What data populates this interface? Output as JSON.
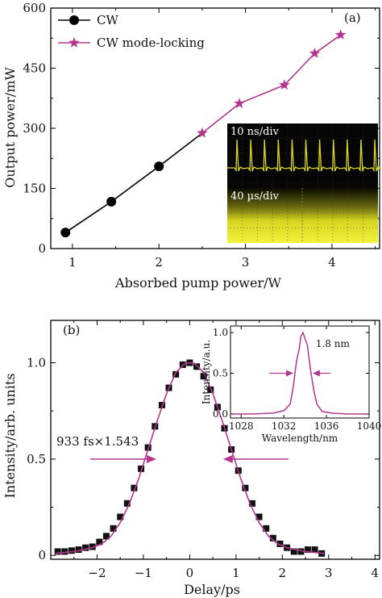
{
  "chart_data": [
    {
      "type": "line",
      "panel_label": "(a)",
      "xlabel": "Absorbed pump power/W",
      "ylabel": "Output power/mW",
      "xlim": [
        0.75,
        4.55
      ],
      "ylim": [
        0,
        600
      ],
      "xticks": [
        1,
        2,
        3,
        4
      ],
      "yticks": [
        0,
        150,
        300,
        450,
        600
      ],
      "series": [
        {
          "name": "CW",
          "marker": "circle",
          "color": "#000000",
          "x": [
            0.92,
            1.45,
            2.0,
            2.5
          ],
          "y": [
            40,
            117,
            205,
            288
          ]
        },
        {
          "name": "CW mode-locking",
          "marker": "star",
          "color": "#b2388f",
          "x": [
            2.5,
            2.93,
            3.45,
            3.8,
            4.1
          ],
          "y": [
            288,
            362,
            408,
            487,
            533
          ]
        }
      ],
      "inset": {
        "type": "oscilloscope",
        "trace_color": "#d8d820",
        "label_top": "10 ns/div",
        "label_bottom": "40 µs/div"
      }
    },
    {
      "type": "scatter",
      "panel_label": "(b)",
      "xlabel": "Delay/ps",
      "ylabel": "Intensity/arb. units",
      "xlim": [
        -3.0,
        4.1
      ],
      "ylim": [
        -0.02,
        1.22
      ],
      "xticks": [
        -2,
        -1,
        0,
        1,
        2,
        3,
        4
      ],
      "yticks": [
        0,
        0.5,
        1.0
      ],
      "ytick_labels": [
        "0",
        "0.5",
        "1.0"
      ],
      "annotation": "933 fs×1.543",
      "fwhm_ps": 1.44,
      "series": [
        {
          "name": "",
          "marker": "square",
          "color": "#111111",
          "x": [
            -2.85,
            -2.7,
            -2.55,
            -2.4,
            -2.25,
            -2.1,
            -1.95,
            -1.8,
            -1.65,
            -1.5,
            -1.35,
            -1.2,
            -1.05,
            -0.9,
            -0.75,
            -0.6,
            -0.45,
            -0.3,
            -0.15,
            0.0,
            0.15,
            0.3,
            0.45,
            0.6,
            0.75,
            0.9,
            1.05,
            1.2,
            1.35,
            1.5,
            1.65,
            1.8,
            1.95,
            2.1,
            2.25,
            2.4,
            2.55,
            2.7,
            2.85
          ],
          "y": [
            0.02,
            0.02,
            0.025,
            0.03,
            0.04,
            0.045,
            0.07,
            0.1,
            0.14,
            0.2,
            0.27,
            0.35,
            0.45,
            0.56,
            0.67,
            0.78,
            0.87,
            0.94,
            0.99,
            1.0,
            0.98,
            0.93,
            0.86,
            0.77,
            0.66,
            0.55,
            0.44,
            0.35,
            0.27,
            0.2,
            0.14,
            0.09,
            0.06,
            0.04,
            0.02,
            0.02,
            0.03,
            0.03,
            0.01
          ]
        },
        {
          "name": "",
          "marker": "none",
          "color": "#b2388f",
          "x": [
            -2.9,
            -2.7,
            -2.5,
            -2.3,
            -2.1,
            -1.9,
            -1.7,
            -1.5,
            -1.3,
            -1.1,
            -0.9,
            -0.7,
            -0.5,
            -0.3,
            -0.1,
            0.0,
            0.1,
            0.3,
            0.5,
            0.7,
            0.9,
            1.1,
            1.3,
            1.5,
            1.7,
            1.9,
            2.1,
            2.3,
            2.5,
            2.7,
            2.9
          ],
          "y": [
            0.01,
            0.015,
            0.02,
            0.03,
            0.04,
            0.06,
            0.1,
            0.17,
            0.27,
            0.4,
            0.55,
            0.7,
            0.84,
            0.95,
            0.997,
            1.0,
            0.997,
            0.95,
            0.84,
            0.7,
            0.55,
            0.4,
            0.27,
            0.17,
            0.1,
            0.06,
            0.04,
            0.03,
            0.02,
            0.015,
            0.01
          ]
        }
      ],
      "inset": {
        "type": "line",
        "xlabel": "Wavelength/nm",
        "ylabel": "Intensity/a.u.",
        "xlim": [
          1027,
          1040
        ],
        "ylim": [
          -0.05,
          1.08
        ],
        "xticks": [
          1028,
          1032,
          1036,
          1040
        ],
        "yticks": [
          0.0,
          0.5,
          1.0
        ],
        "ytick_labels": [
          "0.0",
          "0.5",
          "1.0"
        ],
        "annotation": "1.8 nm",
        "fwhm_nm": 1.8,
        "color": "#b2388f",
        "x": [
          1027.3,
          1029,
          1031,
          1032,
          1032.6,
          1032.9,
          1033.2,
          1033.45,
          1033.6,
          1033.8,
          1034.0,
          1034.2,
          1034.5,
          1034.8,
          1035.1,
          1035.6,
          1036.5,
          1038,
          1039.8
        ],
        "y": [
          0.0,
          0.0,
          0.01,
          0.04,
          0.12,
          0.35,
          0.65,
          0.8,
          0.95,
          1.0,
          0.92,
          0.85,
          0.55,
          0.3,
          0.12,
          0.03,
          0.01,
          0.0,
          0.0
        ]
      }
    }
  ]
}
